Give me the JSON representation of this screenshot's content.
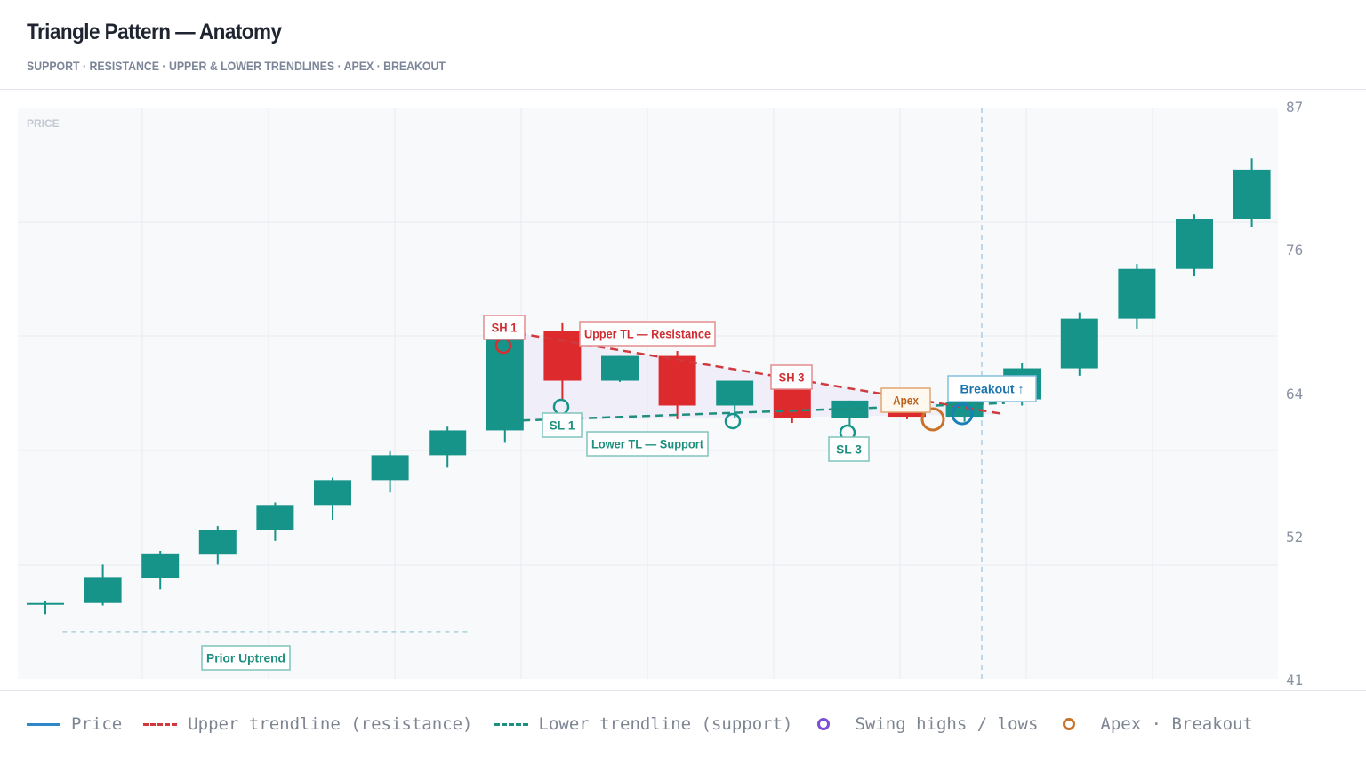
{
  "header": {
    "title": "Triangle Pattern — Anatomy",
    "subtitle": "SUPPORT · RESISTANCE · UPPER & LOWER TRENDLINES · APEX · BREAKOUT"
  },
  "chart_data": {
    "type": "candlestick",
    "ylabel": "PRICE",
    "ylim": [
      41,
      87
    ],
    "y_ticks": [
      "87",
      "76",
      "64",
      "52",
      "41"
    ],
    "grid": true,
    "legend_position": "bottom",
    "candles": [
      {
        "o": 47.0,
        "h": 47.3,
        "l": 46.2,
        "c": 47.1
      },
      {
        "o": 47.1,
        "h": 50.2,
        "l": 46.9,
        "c": 49.2
      },
      {
        "o": 49.1,
        "h": 51.3,
        "l": 48.2,
        "c": 51.1
      },
      {
        "o": 51.0,
        "h": 53.3,
        "l": 50.2,
        "c": 53.0
      },
      {
        "o": 53.0,
        "h": 55.2,
        "l": 52.1,
        "c": 55.0
      },
      {
        "o": 55.0,
        "h": 57.2,
        "l": 53.8,
        "c": 57.0
      },
      {
        "o": 57.0,
        "h": 59.3,
        "l": 56.0,
        "c": 59.0
      },
      {
        "o": 59.0,
        "h": 61.3,
        "l": 58.0,
        "c": 61.0
      },
      {
        "o": 61.0,
        "h": 69.0,
        "l": 60.0,
        "c": 69.0
      },
      {
        "o": 69.0,
        "h": 69.7,
        "l": 63.4,
        "c": 65.0
      },
      {
        "o": 65.0,
        "h": 67.0,
        "l": 64.9,
        "c": 67.0
      },
      {
        "o": 67.0,
        "h": 67.4,
        "l": 61.9,
        "c": 63.0
      },
      {
        "o": 63.0,
        "h": 65.0,
        "l": 62.0,
        "c": 65.0
      },
      {
        "o": 65.0,
        "h": 65.4,
        "l": 61.6,
        "c": 62.0
      },
      {
        "o": 62.0,
        "h": 63.4,
        "l": 61.4,
        "c": 63.4
      },
      {
        "o": 63.0,
        "h": 63.2,
        "l": 61.9,
        "c": 62.1
      },
      {
        "o": 62.1,
        "h": 63.8,
        "l": 61.7,
        "c": 63.3
      },
      {
        "o": 63.5,
        "h": 66.4,
        "l": 63.0,
        "c": 66.0
      },
      {
        "o": 66.0,
        "h": 70.5,
        "l": 65.4,
        "c": 70.0
      },
      {
        "o": 70.0,
        "h": 74.4,
        "l": 69.2,
        "c": 74.0
      },
      {
        "o": 74.0,
        "h": 78.4,
        "l": 73.4,
        "c": 78.0
      },
      {
        "o": 78.0,
        "h": 82.9,
        "l": 77.4,
        "c": 82.0
      }
    ],
    "upper_trendline": [
      {
        "i": 8,
        "y": 69.0
      },
      {
        "i": 16.7,
        "y": 62.3
      }
    ],
    "lower_trendline": [
      {
        "i": 8.3,
        "y": 61.8
      },
      {
        "i": 16.7,
        "y": 63.2
      }
    ],
    "prior_uptrend_line": {
      "i_start": 0.3,
      "i_end": 7.4,
      "y": 44.8
    },
    "breakout_index": 16.3,
    "apex_index": 15.5,
    "annotations": [
      {
        "label": "Prior Uptrend",
        "color": "teal"
      },
      {
        "label": "SH 1",
        "color": "red"
      },
      {
        "label": "SL 1",
        "color": "teal"
      },
      {
        "label": "Upper TL — Resistance",
        "color": "red"
      },
      {
        "label": "Lower TL — Support",
        "color": "teal"
      },
      {
        "label": "SH 3",
        "color": "red"
      },
      {
        "label": "SL 3",
        "color": "teal"
      },
      {
        "label": "Apex",
        "color": "orange"
      },
      {
        "label": "Breakout ↑",
        "color": "blue"
      }
    ]
  },
  "colors": {
    "bull": "#16948a",
    "bear": "#dd2a2d",
    "upper_trendline": "#cf3a3e",
    "lower_trendline": "#1e8f7e",
    "swing_marker": "#7b4fd6",
    "apex_marker": "#c9722a",
    "breakout": "#1b7fb7",
    "price_legend": "#2f86c8"
  },
  "legend": {
    "price": "Price",
    "upper": "Upper trendline (resistance)",
    "lower": "Lower trendline (support)",
    "swing": "Swing highs / lows",
    "apex": "Apex · Breakout"
  }
}
